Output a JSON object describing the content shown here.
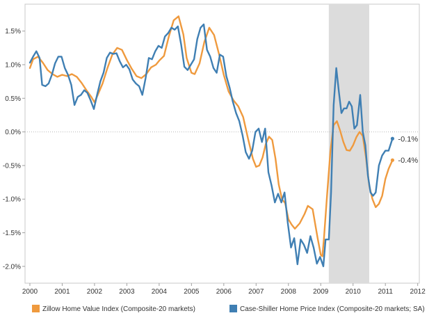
{
  "chart_data": {
    "type": "line",
    "x_axis": {
      "ticks": [
        "2000",
        "2001",
        "2002",
        "2003",
        "2004",
        "2005",
        "2006",
        "2007",
        "2008",
        "2009",
        "2010",
        "2011",
        "2012"
      ],
      "range": [
        1999.85,
        2012.05
      ]
    },
    "y_axis": {
      "ticks": [
        {
          "value": 1.5,
          "label": "1.5%"
        },
        {
          "value": 1.0,
          "label": "1.0%"
        },
        {
          "value": 0.5,
          "label": "0.5%"
        },
        {
          "value": 0.0,
          "label": "0.0%"
        },
        {
          "value": -0.5,
          "label": "-0.5%"
        },
        {
          "value": -1.0,
          "label": "-1.0%"
        },
        {
          "value": -1.5,
          "label": "-1.5%"
        },
        {
          "value": -2.0,
          "label": "-2.0%"
        }
      ],
      "range": [
        -2.25,
        1.9
      ],
      "zero_line": "dotted"
    },
    "shaded_region": {
      "x_start": 2009.25,
      "x_end": 2010.5,
      "color": "#dcdcdc"
    },
    "legend_position": "bottom",
    "series": [
      {
        "name": "Zillow Home Value Index (Composite-20 markets)",
        "color": "#ef9a3e",
        "end_label": "-0.4%",
        "points": [
          [
            2000.0,
            0.95
          ],
          [
            2000.1,
            1.08
          ],
          [
            2000.25,
            1.12
          ],
          [
            2000.4,
            1.03
          ],
          [
            2000.55,
            0.92
          ],
          [
            2000.7,
            0.86
          ],
          [
            2000.85,
            0.82
          ],
          [
            2001.0,
            0.85
          ],
          [
            2001.15,
            0.83
          ],
          [
            2001.3,
            0.86
          ],
          [
            2001.45,
            0.82
          ],
          [
            2001.6,
            0.73
          ],
          [
            2001.75,
            0.62
          ],
          [
            2001.9,
            0.52
          ],
          [
            2002.0,
            0.44
          ],
          [
            2002.1,
            0.55
          ],
          [
            2002.25,
            0.72
          ],
          [
            2002.4,
            0.95
          ],
          [
            2002.55,
            1.15
          ],
          [
            2002.7,
            1.25
          ],
          [
            2002.85,
            1.22
          ],
          [
            2003.0,
            1.07
          ],
          [
            2003.15,
            0.94
          ],
          [
            2003.3,
            0.83
          ],
          [
            2003.45,
            0.8
          ],
          [
            2003.6,
            0.86
          ],
          [
            2003.75,
            0.96
          ],
          [
            2003.9,
            1.0
          ],
          [
            2004.0,
            1.06
          ],
          [
            2004.15,
            1.13
          ],
          [
            2004.3,
            1.42
          ],
          [
            2004.45,
            1.66
          ],
          [
            2004.6,
            1.72
          ],
          [
            2004.75,
            1.45
          ],
          [
            2004.85,
            1.1
          ],
          [
            2005.0,
            0.88
          ],
          [
            2005.1,
            0.86
          ],
          [
            2005.25,
            1.02
          ],
          [
            2005.4,
            1.34
          ],
          [
            2005.55,
            1.55
          ],
          [
            2005.7,
            1.44
          ],
          [
            2005.85,
            1.16
          ],
          [
            2006.0,
            0.85
          ],
          [
            2006.15,
            0.6
          ],
          [
            2006.3,
            0.47
          ],
          [
            2006.45,
            0.38
          ],
          [
            2006.6,
            0.22
          ],
          [
            2006.75,
            -0.1
          ],
          [
            2006.9,
            -0.4
          ],
          [
            2007.0,
            -0.52
          ],
          [
            2007.1,
            -0.5
          ],
          [
            2007.2,
            -0.38
          ],
          [
            2007.3,
            -0.18
          ],
          [
            2007.4,
            -0.07
          ],
          [
            2007.5,
            -0.12
          ],
          [
            2007.6,
            -0.4
          ],
          [
            2007.7,
            -0.78
          ],
          [
            2007.8,
            -1.0
          ],
          [
            2007.9,
            -1.06
          ],
          [
            2008.0,
            -1.3
          ],
          [
            2008.1,
            -1.38
          ],
          [
            2008.2,
            -1.44
          ],
          [
            2008.35,
            -1.36
          ],
          [
            2008.5,
            -1.22
          ],
          [
            2008.6,
            -1.1
          ],
          [
            2008.75,
            -1.15
          ],
          [
            2008.9,
            -1.57
          ],
          [
            2009.0,
            -1.83
          ],
          [
            2009.05,
            -1.85
          ],
          [
            2009.1,
            -1.58
          ],
          [
            2009.2,
            -0.92
          ],
          [
            2009.3,
            -0.28
          ],
          [
            2009.4,
            0.1
          ],
          [
            2009.5,
            0.16
          ],
          [
            2009.6,
            0.02
          ],
          [
            2009.7,
            -0.15
          ],
          [
            2009.8,
            -0.27
          ],
          [
            2009.9,
            -0.28
          ],
          [
            2010.0,
            -0.2
          ],
          [
            2010.1,
            -0.08
          ],
          [
            2010.2,
            0.0
          ],
          [
            2010.3,
            -0.06
          ],
          [
            2010.4,
            -0.38
          ],
          [
            2010.5,
            -0.8
          ],
          [
            2010.6,
            -1.0
          ],
          [
            2010.7,
            -1.12
          ],
          [
            2010.8,
            -1.07
          ],
          [
            2010.9,
            -0.95
          ],
          [
            2011.0,
            -0.7
          ],
          [
            2011.1,
            -0.55
          ],
          [
            2011.22,
            -0.42
          ]
        ]
      },
      {
        "name": "Case-Shiller Home Price Index (Composite-20 markets; SA)",
        "color": "#3f7fb3",
        "end_label": "-0.1%",
        "points": [
          [
            2000.0,
            1.03
          ],
          [
            2000.1,
            1.12
          ],
          [
            2000.2,
            1.2
          ],
          [
            2000.3,
            1.1
          ],
          [
            2000.38,
            0.7
          ],
          [
            2000.48,
            0.68
          ],
          [
            2000.58,
            0.72
          ],
          [
            2000.68,
            0.85
          ],
          [
            2000.78,
            1.02
          ],
          [
            2000.88,
            1.12
          ],
          [
            2000.98,
            1.12
          ],
          [
            2001.08,
            0.95
          ],
          [
            2001.18,
            0.85
          ],
          [
            2001.28,
            0.7
          ],
          [
            2001.38,
            0.4
          ],
          [
            2001.48,
            0.52
          ],
          [
            2001.58,
            0.55
          ],
          [
            2001.68,
            0.62
          ],
          [
            2001.78,
            0.58
          ],
          [
            2001.88,
            0.47
          ],
          [
            2001.98,
            0.34
          ],
          [
            2002.08,
            0.55
          ],
          [
            2002.18,
            0.75
          ],
          [
            2002.28,
            0.88
          ],
          [
            2002.38,
            1.1
          ],
          [
            2002.48,
            1.18
          ],
          [
            2002.58,
            1.16
          ],
          [
            2002.68,
            1.17
          ],
          [
            2002.78,
            1.05
          ],
          [
            2002.88,
            0.96
          ],
          [
            2002.98,
            1.0
          ],
          [
            2003.08,
            0.93
          ],
          [
            2003.18,
            0.78
          ],
          [
            2003.28,
            0.72
          ],
          [
            2003.38,
            0.68
          ],
          [
            2003.48,
            0.55
          ],
          [
            2003.58,
            0.8
          ],
          [
            2003.68,
            1.1
          ],
          [
            2003.78,
            1.08
          ],
          [
            2003.88,
            1.2
          ],
          [
            2003.98,
            1.28
          ],
          [
            2004.08,
            1.25
          ],
          [
            2004.18,
            1.42
          ],
          [
            2004.28,
            1.47
          ],
          [
            2004.38,
            1.55
          ],
          [
            2004.48,
            1.52
          ],
          [
            2004.58,
            1.57
          ],
          [
            2004.68,
            1.3
          ],
          [
            2004.78,
            0.97
          ],
          [
            2004.88,
            0.92
          ],
          [
            2004.98,
            1.0
          ],
          [
            2005.08,
            1.08
          ],
          [
            2005.18,
            1.38
          ],
          [
            2005.28,
            1.55
          ],
          [
            2005.38,
            1.6
          ],
          [
            2005.48,
            1.22
          ],
          [
            2005.58,
            1.12
          ],
          [
            2005.68,
            0.95
          ],
          [
            2005.78,
            0.88
          ],
          [
            2005.88,
            1.15
          ],
          [
            2005.98,
            1.12
          ],
          [
            2006.08,
            0.83
          ],
          [
            2006.18,
            0.66
          ],
          [
            2006.28,
            0.45
          ],
          [
            2006.38,
            0.28
          ],
          [
            2006.48,
            0.16
          ],
          [
            2006.58,
            -0.05
          ],
          [
            2006.68,
            -0.3
          ],
          [
            2006.78,
            -0.4
          ],
          [
            2006.88,
            -0.28
          ],
          [
            2006.98,
            0.0
          ],
          [
            2007.08,
            0.05
          ],
          [
            2007.18,
            -0.15
          ],
          [
            2007.28,
            0.05
          ],
          [
            2007.38,
            -0.6
          ],
          [
            2007.48,
            -0.8
          ],
          [
            2007.58,
            -1.05
          ],
          [
            2007.68,
            -0.92
          ],
          [
            2007.78,
            -1.05
          ],
          [
            2007.88,
            -0.9
          ],
          [
            2007.98,
            -1.35
          ],
          [
            2008.08,
            -1.72
          ],
          [
            2008.18,
            -1.58
          ],
          [
            2008.28,
            -1.97
          ],
          [
            2008.38,
            -1.6
          ],
          [
            2008.48,
            -1.68
          ],
          [
            2008.58,
            -1.8
          ],
          [
            2008.68,
            -1.55
          ],
          [
            2008.78,
            -1.72
          ],
          [
            2008.88,
            -1.96
          ],
          [
            2008.98,
            -1.86
          ],
          [
            2009.08,
            -2.0
          ],
          [
            2009.15,
            -1.6
          ],
          [
            2009.25,
            -1.6
          ],
          [
            2009.32,
            -0.9
          ],
          [
            2009.4,
            0.4
          ],
          [
            2009.48,
            0.95
          ],
          [
            2009.56,
            0.6
          ],
          [
            2009.64,
            0.28
          ],
          [
            2009.72,
            0.35
          ],
          [
            2009.8,
            0.35
          ],
          [
            2009.88,
            0.45
          ],
          [
            2009.96,
            0.38
          ],
          [
            2010.04,
            0.05
          ],
          [
            2010.12,
            0.1
          ],
          [
            2010.22,
            0.55
          ],
          [
            2010.3,
            0.0
          ],
          [
            2010.38,
            -0.2
          ],
          [
            2010.46,
            -0.65
          ],
          [
            2010.54,
            -0.9
          ],
          [
            2010.62,
            -0.95
          ],
          [
            2010.7,
            -0.9
          ],
          [
            2010.8,
            -0.5
          ],
          [
            2010.9,
            -0.35
          ],
          [
            2011.0,
            -0.28
          ],
          [
            2011.1,
            -0.28
          ],
          [
            2011.22,
            -0.1
          ]
        ]
      }
    ]
  }
}
